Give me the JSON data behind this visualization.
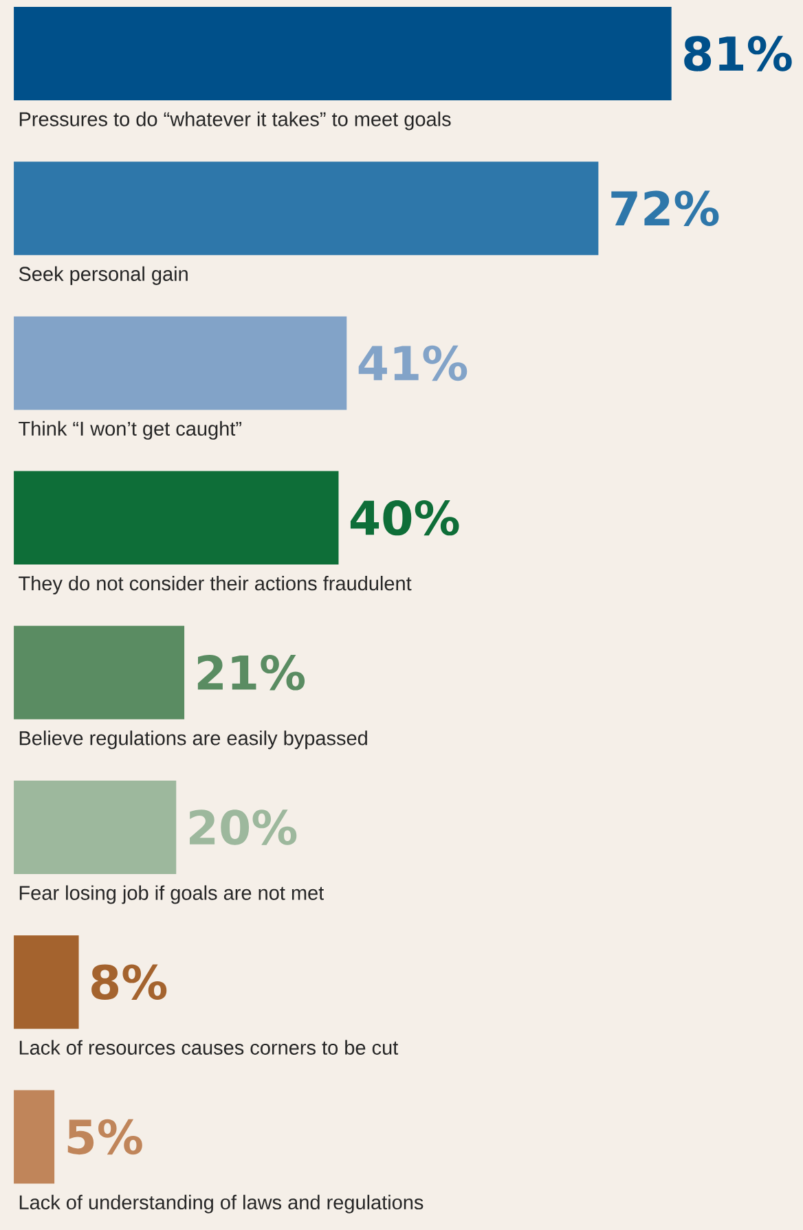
{
  "chart_data": {
    "type": "bar",
    "orientation": "horizontal",
    "categories": [
      "Pressures to do “whatever it takes” to meet goals",
      "Seek personal gain",
      "Think “I won’t get caught”",
      "They do not consider their actions fraudulent",
      "Believe regulations are easily bypassed",
      "Fear losing job if goals are not met",
      "Lack of resources causes corners to be cut",
      "Lack of understanding of laws and regulations"
    ],
    "values": [
      81,
      72,
      41,
      40,
      21,
      20,
      8,
      5
    ],
    "value_labels": [
      "81%",
      "72%",
      "41%",
      "40%",
      "21%",
      "20%",
      "8%",
      "5%"
    ],
    "colors": [
      "#00508a",
      "#2e77aa",
      "#82a3c8",
      "#0e6e38",
      "#5a8c62",
      "#9db89d",
      "#a4632e",
      "#c0855a"
    ]
  }
}
